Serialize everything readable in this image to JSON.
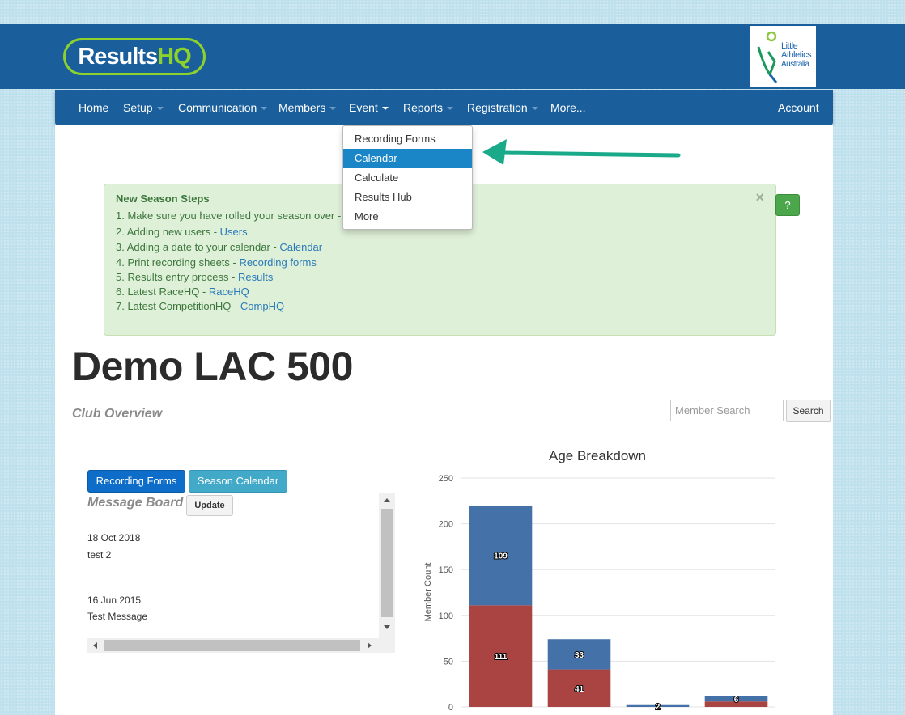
{
  "brand": {
    "logo_text_a": "Results",
    "logo_text_b": "HQ",
    "partner_line1": "Little",
    "partner_line2": "Athletics",
    "partner_line3": "Australia"
  },
  "nav": {
    "items": [
      {
        "label": "Home",
        "has_caret": false
      },
      {
        "label": "Setup",
        "has_caret": true
      },
      {
        "label": "Communication",
        "has_caret": true
      },
      {
        "label": "Members",
        "has_caret": true
      },
      {
        "label": "Event",
        "has_caret": true,
        "active": true
      },
      {
        "label": "Reports",
        "has_caret": true
      },
      {
        "label": "Registration",
        "has_caret": true
      },
      {
        "label": "More...",
        "has_caret": false
      }
    ],
    "account": "Account"
  },
  "event_menu": {
    "items": [
      "Recording Forms",
      "Calendar",
      "Calculate",
      "Results Hub",
      "More"
    ],
    "highlighted": "Calendar"
  },
  "alert": {
    "title": "New Season Steps",
    "close": "×",
    "steps": [
      {
        "text": "1. Make sure you have rolled your season over - ",
        "link": ""
      },
      {
        "text": "2. Adding new users - ",
        "link": "Users"
      },
      {
        "text": "3. Adding a date to your calendar - ",
        "link": "Calendar"
      },
      {
        "text": "4. Print recording sheets - ",
        "link": "Recording forms"
      },
      {
        "text": "5. Results entry process - ",
        "link": "Results"
      },
      {
        "text": "6. Latest RaceHQ - ",
        "link": "RaceHQ"
      },
      {
        "text": "7. Latest CompetitionHQ - ",
        "link": "CompHQ"
      }
    ]
  },
  "help_button": "?",
  "page": {
    "title": "Demo LAC 500",
    "subtitle": "Club Overview"
  },
  "search": {
    "placeholder": "Member Search",
    "button": "Search"
  },
  "actions": {
    "recording_forms": "Recording Forms",
    "season_calendar": "Season Calendar"
  },
  "message_board": {
    "title": "Message Board",
    "update": "Update",
    "messages": [
      {
        "date": "18 Oct 2018",
        "text": "test 2"
      },
      {
        "date": "16 Jun 2015",
        "text": "Test Message"
      }
    ]
  },
  "colors": {
    "nav_bg": "#1a5f9b",
    "series_a": "#4472a8",
    "series_b": "#aa4443",
    "accent_arrow": "#1aaa8a"
  },
  "chart_data": {
    "type": "bar",
    "stacked": true,
    "title": "Age Breakdown",
    "ylabel": "Member Count",
    "xlabel": "",
    "ylim": [
      0,
      250
    ],
    "yticks": [
      0,
      50,
      100,
      150,
      200,
      250
    ],
    "grid": true,
    "categories": [
      "",
      "",
      "",
      ""
    ],
    "series": [
      {
        "values": [
          111,
          41,
          0,
          6
        ]
      },
      {
        "values": [
          109,
          33,
          2,
          6
        ]
      }
    ],
    "data_labels": [
      [
        "111",
        "41",
        "",
        ""
      ],
      [
        "109",
        "33",
        "2",
        "6"
      ]
    ]
  }
}
